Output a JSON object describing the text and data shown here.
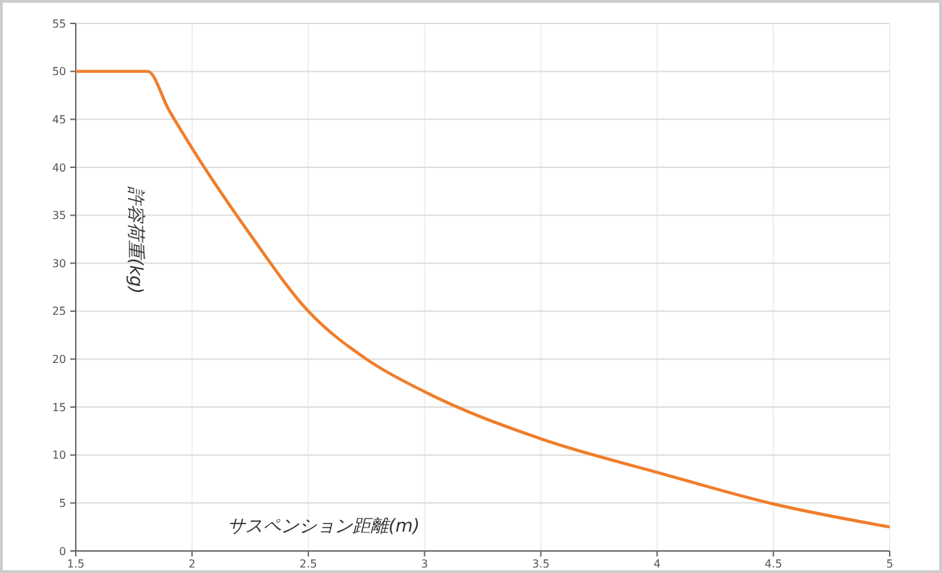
{
  "chart_data": {
    "type": "line",
    "xlabel": "サスペンション距離(m)",
    "ylabel": "許容荷重(kg)",
    "x": [
      1.5,
      1.81,
      1.9,
      2.0,
      2.25,
      2.5,
      2.75,
      3.0,
      3.5,
      4.0,
      4.5,
      5.0
    ],
    "series": [
      {
        "color": "#f07d2a",
        "values": [
          50,
          50,
          46,
          42,
          33,
          25,
          20,
          16.6,
          11.7,
          8.2,
          4.9,
          2.5
        ]
      }
    ],
    "xlim": [
      1.5,
      5
    ],
    "xticks": [
      1.5,
      2,
      2.5,
      3,
      3.5,
      4,
      4.5,
      5
    ],
    "ylim": [
      0,
      55
    ],
    "yticks": [
      0,
      5,
      10,
      15,
      20,
      25,
      30,
      35,
      40,
      45,
      50,
      55
    ],
    "grid": true,
    "marker": "none",
    "line_style": "solid"
  }
}
